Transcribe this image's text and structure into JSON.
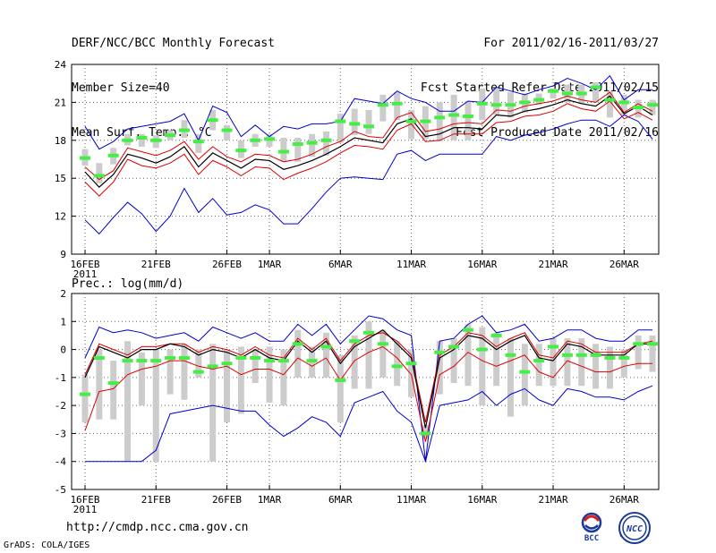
{
  "header": {
    "title": "DERF/NCC/BCC Monthly Forecast",
    "member_size": "Member Size=40",
    "variable": "Mean Surf. Temp.: °C",
    "period": "For 2011/02/16-2011/03/27",
    "refer_date": "Fcst Started Refer Date 2011/02/15",
    "produced_date": "Fcst Produced Date 2011/02/16"
  },
  "footer": {
    "url": "http://cmdp.ncc.cma.gov.cn",
    "grads": "GrADS: COLA/IGES",
    "logo_bcc_text": "BCC",
    "logo_ncc_text": "NCC"
  },
  "colors": {
    "max_min": "#0000cc",
    "percentile": "#dd0000",
    "mean": "#000000",
    "median": "#44ee44",
    "box": "#cccccc"
  },
  "chart_data": [
    {
      "type": "line",
      "title": "Mean Surf. Temp.: °C",
      "ylim": [
        9,
        24
      ],
      "yticks": [
        9,
        12,
        15,
        18,
        21,
        24
      ],
      "x_tick_labels": [
        {
          "day": 0,
          "label": "16FEB",
          "sub": "2011"
        },
        {
          "day": 5,
          "label": "21FEB"
        },
        {
          "day": 10,
          "label": "26FEB"
        },
        {
          "day": 13,
          "label": "1MAR"
        },
        {
          "day": 18,
          "label": "6MAR"
        },
        {
          "day": 23,
          "label": "11MAR"
        },
        {
          "day": 28,
          "label": "16MAR"
        },
        {
          "day": 33,
          "label": "21MAR"
        },
        {
          "day": 38,
          "label": "26MAR"
        }
      ],
      "grid": true,
      "series": [
        {
          "name": "max",
          "values": [
            19.1,
            17.3,
            17.9,
            18.9,
            19.1,
            19.3,
            19.5,
            20.1,
            18.0,
            20.7,
            20.2,
            18.3,
            19.2,
            18.3,
            19.1,
            18.9,
            19.3,
            19.3,
            19.5,
            21.3,
            21.1,
            20.9,
            21.9,
            21.3,
            21.0,
            20.3,
            20.3,
            21.1,
            21.0,
            22.2,
            21.9,
            21.6,
            22.0,
            22.3,
            22.9,
            22.5,
            22.0,
            23.1,
            21.2,
            22.0,
            22.0
          ]
        },
        {
          "name": "p_high",
          "values": [
            15.9,
            14.9,
            15.6,
            17.4,
            17.1,
            16.8,
            17.2,
            17.9,
            16.5,
            17.5,
            16.7,
            16.3,
            16.9,
            16.8,
            16.3,
            16.5,
            16.9,
            17.5,
            17.9,
            18.7,
            18.3,
            18.2,
            19.8,
            20.2,
            18.7,
            18.9,
            19.3,
            19.4,
            19.3,
            20.4,
            20.3,
            20.7,
            20.9,
            21.1,
            21.5,
            21.2,
            21.0,
            21.8,
            20.2,
            20.9,
            20.3
          ]
        },
        {
          "name": "mean",
          "values": [
            15.5,
            14.3,
            15.3,
            16.9,
            16.6,
            16.2,
            16.7,
            17.5,
            15.9,
            17.0,
            16.4,
            15.8,
            16.5,
            16.4,
            15.7,
            16.0,
            16.4,
            16.9,
            17.5,
            18.2,
            18.0,
            17.8,
            19.3,
            19.7,
            18.3,
            18.5,
            19.0,
            19.0,
            18.9,
            20.0,
            19.9,
            20.3,
            20.5,
            20.8,
            21.2,
            20.9,
            20.7,
            21.5,
            20.1,
            20.7,
            20.0
          ]
        },
        {
          "name": "p_low",
          "values": [
            14.7,
            13.6,
            14.7,
            16.5,
            16.0,
            15.8,
            16.2,
            16.9,
            15.3,
            16.4,
            15.9,
            15.2,
            15.9,
            15.8,
            14.9,
            15.4,
            15.8,
            16.3,
            17.0,
            17.6,
            17.5,
            17.3,
            18.8,
            19.3,
            17.9,
            18.0,
            18.5,
            18.5,
            18.5,
            19.4,
            19.5,
            19.9,
            20.0,
            20.3,
            20.9,
            20.5,
            20.3,
            21.1,
            19.7,
            20.2,
            19.6
          ]
        },
        {
          "name": "min",
          "values": [
            11.7,
            10.6,
            11.9,
            13.1,
            12.2,
            10.8,
            12.0,
            14.2,
            12.3,
            13.4,
            12.1,
            12.3,
            12.9,
            12.5,
            11.4,
            11.4,
            12.6,
            13.9,
            15.0,
            15.1,
            15.0,
            14.9,
            16.9,
            17.2,
            16.4,
            16.9,
            16.9,
            16.9,
            16.9,
            18.3,
            18.0,
            18.4,
            18.6,
            18.9,
            19.3,
            19.6,
            19.6,
            19.1,
            20.0,
            19.5,
            18.1
          ]
        },
        {
          "name": "median",
          "values": [
            16.6,
            15.2,
            16.8,
            18.0,
            18.2,
            18.0,
            18.4,
            18.8,
            17.9,
            19.6,
            18.8,
            17.2,
            18.0,
            18.1,
            17.1,
            17.7,
            17.8,
            18.0,
            19.5,
            19.3,
            19.1,
            20.8,
            20.9,
            19.5,
            19.5,
            19.8,
            20.0,
            19.9,
            20.9,
            20.8,
            20.8,
            21.0,
            21.2,
            21.9,
            21.7,
            21.7,
            22.2,
            21.2,
            21.0,
            20.6,
            20.8
          ]
        },
        {
          "name": "box_top",
          "values": [
            17.3,
            16.2,
            17.4,
            18.5,
            18.5,
            18.4,
            18.8,
            19.6,
            18.5,
            20.4,
            19.2,
            18.0,
            18.5,
            18.5,
            18.2,
            18.2,
            18.5,
            18.7,
            20.1,
            20.5,
            20.4,
            21.6,
            21.8,
            20.4,
            20.7,
            21.0,
            21.6,
            21.1,
            22.1,
            22.1,
            21.8,
            21.7,
            21.7,
            22.1,
            22.4,
            22.4,
            22.6,
            21.9,
            21.6,
            21.2,
            21.2
          ]
        },
        {
          "name": "box_bottom",
          "values": [
            16.0,
            14.6,
            16.1,
            17.6,
            17.5,
            17.4,
            18.0,
            18.2,
            17.0,
            18.8,
            18.0,
            16.6,
            17.5,
            17.5,
            16.3,
            16.3,
            16.7,
            16.8,
            17.8,
            18.4,
            18.5,
            19.5,
            19.6,
            18.1,
            18.1,
            17.9,
            18.0,
            18.0,
            19.6,
            20.0,
            19.8,
            20.2,
            20.8,
            21.3,
            21.0,
            20.9,
            21.0,
            19.8,
            20.0,
            19.8,
            20.0
          ]
        }
      ]
    },
    {
      "type": "line",
      "title": "Prec.: log(mm/d)",
      "ylim": [
        -5,
        2
      ],
      "yticks": [
        -5,
        -4,
        -3,
        -2,
        -1,
        0,
        1,
        2
      ],
      "x_tick_labels": [
        {
          "day": 0,
          "label": "16FEB",
          "sub": "2011"
        },
        {
          "day": 5,
          "label": "21FEB"
        },
        {
          "day": 10,
          "label": "26FEB"
        },
        {
          "day": 13,
          "label": "1MAR"
        },
        {
          "day": 18,
          "label": "6MAR"
        },
        {
          "day": 23,
          "label": "11MAR"
        },
        {
          "day": 28,
          "label": "16MAR"
        },
        {
          "day": 33,
          "label": "21MAR"
        },
        {
          "day": 38,
          "label": "26MAR"
        }
      ],
      "grid": true,
      "series": [
        {
          "name": "max",
          "values": [
            -0.3,
            0.8,
            0.6,
            0.7,
            0.6,
            0.4,
            0.5,
            0.6,
            0.3,
            0.8,
            0.6,
            0.4,
            0.6,
            0.3,
            0.3,
            0.9,
            0.5,
            0.9,
            0.2,
            0.7,
            1.2,
            1.1,
            0.7,
            0.5,
            -4.0,
            0.3,
            0.4,
            0.9,
            1.2,
            0.6,
            0.7,
            0.9,
            0.3,
            0.4,
            0.7,
            0.7,
            0.4,
            0.3,
            0.3,
            0.7,
            0.7
          ]
        },
        {
          "name": "p_high",
          "values": [
            -0.9,
            0.2,
            0.0,
            -0.2,
            0.1,
            0.1,
            0.2,
            0.2,
            -0.1,
            0.1,
            0.0,
            -0.2,
            0.1,
            -0.2,
            -0.3,
            0.4,
            0.0,
            0.4,
            -0.4,
            0.2,
            0.5,
            0.6,
            0.3,
            -0.2,
            -2.6,
            -0.2,
            0.1,
            0.6,
            0.5,
            0.1,
            0.4,
            0.6,
            -0.2,
            -0.3,
            0.3,
            0.2,
            -0.1,
            -0.1,
            -0.1,
            0.2,
            0.3
          ]
        },
        {
          "name": "mean",
          "values": [
            -1.0,
            0.1,
            -0.1,
            -0.3,
            0.0,
            0.0,
            0.2,
            0.1,
            -0.2,
            0.0,
            -0.1,
            -0.3,
            0.0,
            -0.3,
            -0.4,
            0.3,
            -0.1,
            0.3,
            -0.5,
            0.1,
            0.4,
            0.7,
            0.2,
            -0.3,
            -2.8,
            -0.3,
            0.0,
            0.5,
            0.4,
            0.0,
            0.3,
            0.5,
            -0.3,
            -0.4,
            0.2,
            0.1,
            -0.2,
            -0.2,
            -0.2,
            0.2,
            0.2
          ]
        },
        {
          "name": "p_low",
          "values": [
            -2.9,
            -1.5,
            -1.4,
            -0.9,
            -0.7,
            -0.6,
            -0.4,
            -0.4,
            -0.6,
            -0.7,
            -0.6,
            -0.9,
            -0.7,
            -0.7,
            -0.9,
            -0.3,
            -0.6,
            -0.3,
            -1.1,
            -0.4,
            -0.1,
            0.1,
            -0.3,
            -0.9,
            -3.3,
            -0.9,
            -0.6,
            -0.1,
            -0.4,
            -0.6,
            -0.4,
            -0.2,
            -0.8,
            -1.0,
            -0.4,
            -0.6,
            -0.8,
            -0.8,
            -0.6,
            -0.5,
            -0.5
          ]
        },
        {
          "name": "min",
          "values": [
            -4.0,
            -4.0,
            -4.0,
            -4.0,
            -4.0,
            -3.6,
            -2.3,
            -2.2,
            -2.1,
            -2.0,
            -2.1,
            -2.2,
            -2.2,
            -2.7,
            -3.1,
            -2.8,
            -2.4,
            -2.6,
            -3.1,
            -1.9,
            -1.7,
            -1.5,
            -2.2,
            -2.6,
            -4.0,
            -2.0,
            -1.9,
            -1.8,
            -1.5,
            -2.0,
            -1.6,
            -1.4,
            -1.8,
            -2.0,
            -1.4,
            -1.5,
            -1.7,
            -1.7,
            -1.8,
            -1.5,
            -1.3
          ]
        },
        {
          "name": "median",
          "values": [
            -1.6,
            -0.3,
            -1.2,
            -0.4,
            -0.4,
            -0.4,
            -0.3,
            -0.3,
            -0.8,
            -0.6,
            -0.5,
            -0.3,
            -0.3,
            -0.4,
            -0.4,
            0.2,
            -0.4,
            0.1,
            -1.1,
            0.3,
            0.6,
            0.2,
            -0.6,
            -0.5,
            -3.0,
            -0.1,
            0.1,
            0.7,
            0.0,
            0.5,
            -0.2,
            -0.8,
            -0.4,
            0.1,
            -0.2,
            -0.2,
            -0.2,
            -0.3,
            -0.3,
            0.2,
            0.2
          ]
        },
        {
          "name": "box_top",
          "values": [
            -0.9,
            0.0,
            -0.4,
            0.3,
            -0.1,
            0.0,
            0.0,
            0.2,
            0.0,
            0.2,
            0.0,
            0.1,
            0.0,
            0.1,
            0.0,
            0.7,
            0.1,
            0.6,
            -0.2,
            0.5,
            1.0,
            0.7,
            0.3,
            0.0,
            -2.7,
            0.3,
            0.4,
            0.9,
            0.8,
            0.6,
            0.4,
            0.2,
            0.2,
            0.4,
            0.4,
            0.4,
            0.2,
            0.1,
            0.0,
            0.5,
            0.5
          ]
        },
        {
          "name": "box_bottom",
          "values": [
            -2.6,
            -2.5,
            -2.5,
            -4.0,
            -2.0,
            -4.0,
            -1.6,
            -1.8,
            -1.0,
            -4.0,
            -2.6,
            -2.3,
            -1.2,
            -1.9,
            -2.0,
            -1.0,
            -1.0,
            -1.0,
            -2.6,
            -1.4,
            -1.4,
            -1.0,
            -1.3,
            -1.7,
            -3.2,
            -1.6,
            -1.2,
            -1.3,
            -2.0,
            -1.3,
            -2.4,
            -2.0,
            -1.3,
            -1.3,
            -1.3,
            -1.3,
            -1.4,
            -1.4,
            -1.0,
            -0.7,
            -0.8
          ]
        }
      ]
    }
  ]
}
